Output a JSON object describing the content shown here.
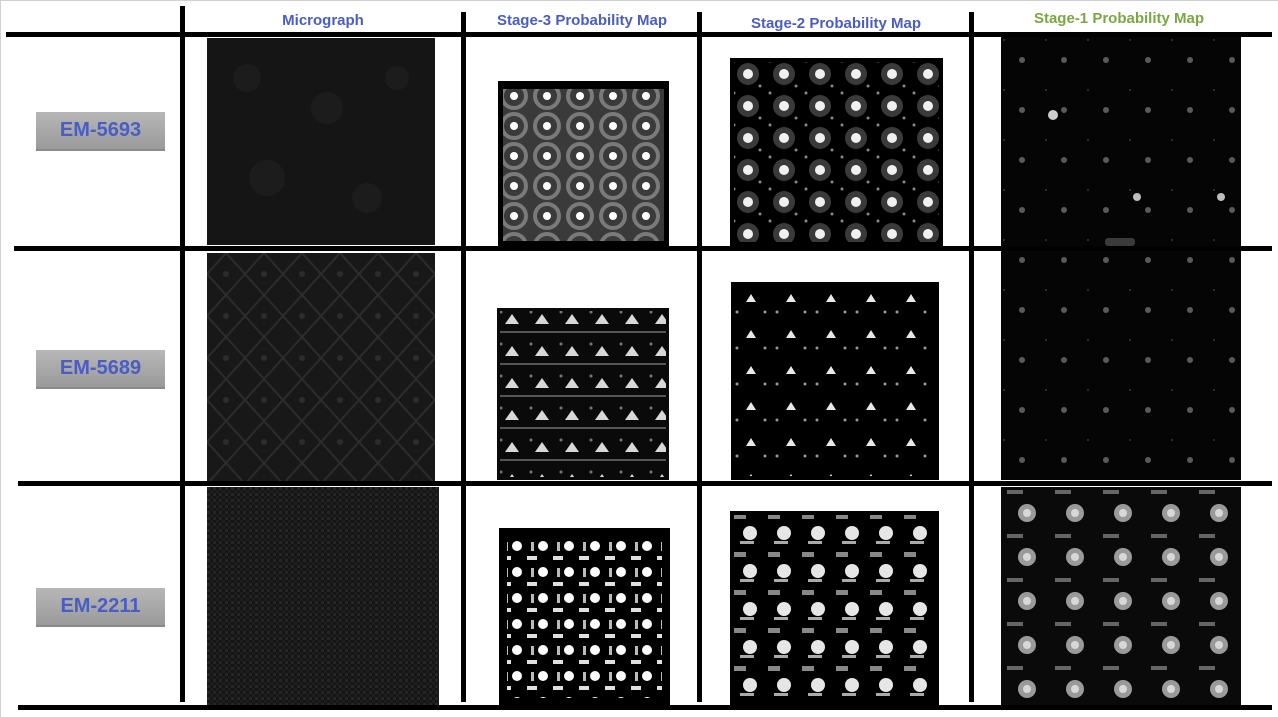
{
  "headers": {
    "micrograph": "Micrograph",
    "stage3": "Stage-3 Probability Map",
    "stage2": "Stage-2 Probability Map",
    "stage1": "Stage-1 Probability Map"
  },
  "header_colors": {
    "default": "#4a5dc4",
    "stage1": "#7aa644"
  },
  "rows": [
    {
      "label": "EM-5693"
    },
    {
      "label": "EM-5689"
    },
    {
      "label": "EM-2211"
    }
  ]
}
